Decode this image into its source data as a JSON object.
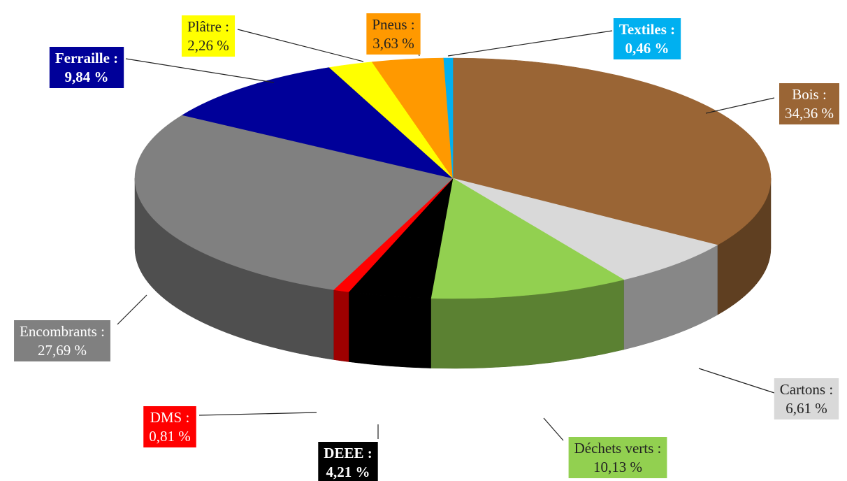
{
  "chart_data": {
    "type": "pie",
    "three_d": true,
    "slices": [
      {
        "name": "Bois :",
        "value_label": "34,36 %",
        "value": 34.36,
        "color": "#9A6535",
        "label_bg": "#9A6535",
        "label_fg": "#ffffff",
        "bold": false
      },
      {
        "name": "Cartons :",
        "value_label": "6,61 %",
        "value": 6.61,
        "color": "#D9D9D9",
        "label_bg": "#D9D9D9",
        "label_fg": "#222222",
        "bold": false
      },
      {
        "name": "Déchets verts :",
        "value_label": "10,13 %",
        "value": 10.13,
        "color": "#92D050",
        "label_bg": "#92D050",
        "label_fg": "#222222",
        "bold": false
      },
      {
        "name": "DEEE :",
        "value_label": "4,21 %",
        "value": 4.21,
        "color": "#000000",
        "label_bg": "#000000",
        "label_fg": "#ffffff",
        "bold": true
      },
      {
        "name": "DMS :",
        "value_label": "0,81 %",
        "value": 0.81,
        "color": "#FF0000",
        "label_bg": "#FF0000",
        "label_fg": "#ffffff",
        "bold": false
      },
      {
        "name": "Encombrants :",
        "value_label": "27,69 %",
        "value": 27.69,
        "color": "#808080",
        "label_bg": "#808080",
        "label_fg": "#ffffff",
        "bold": false
      },
      {
        "name": "Ferraille :",
        "value_label": "9,84 %",
        "value": 9.84,
        "color": "#000099",
        "label_bg": "#000099",
        "label_fg": "#ffffff",
        "bold": true
      },
      {
        "name": "Plâtre :",
        "value_label": "2,26 %",
        "value": 2.26,
        "color": "#FFFF00",
        "label_bg": "#FFFF00",
        "label_fg": "#222222",
        "bold": false
      },
      {
        "name": "Pneus :",
        "value_label": "3,63 %",
        "value": 3.63,
        "color": "#FF9900",
        "label_bg": "#FF9900",
        "label_fg": "#222222",
        "bold": false
      },
      {
        "name": "Textiles :",
        "value_label": "0,46 %",
        "value": 0.46,
        "color": "#00B0F0",
        "label_bg": "#00B0F0",
        "label_fg": "#ffffff",
        "bold": true
      }
    ]
  }
}
